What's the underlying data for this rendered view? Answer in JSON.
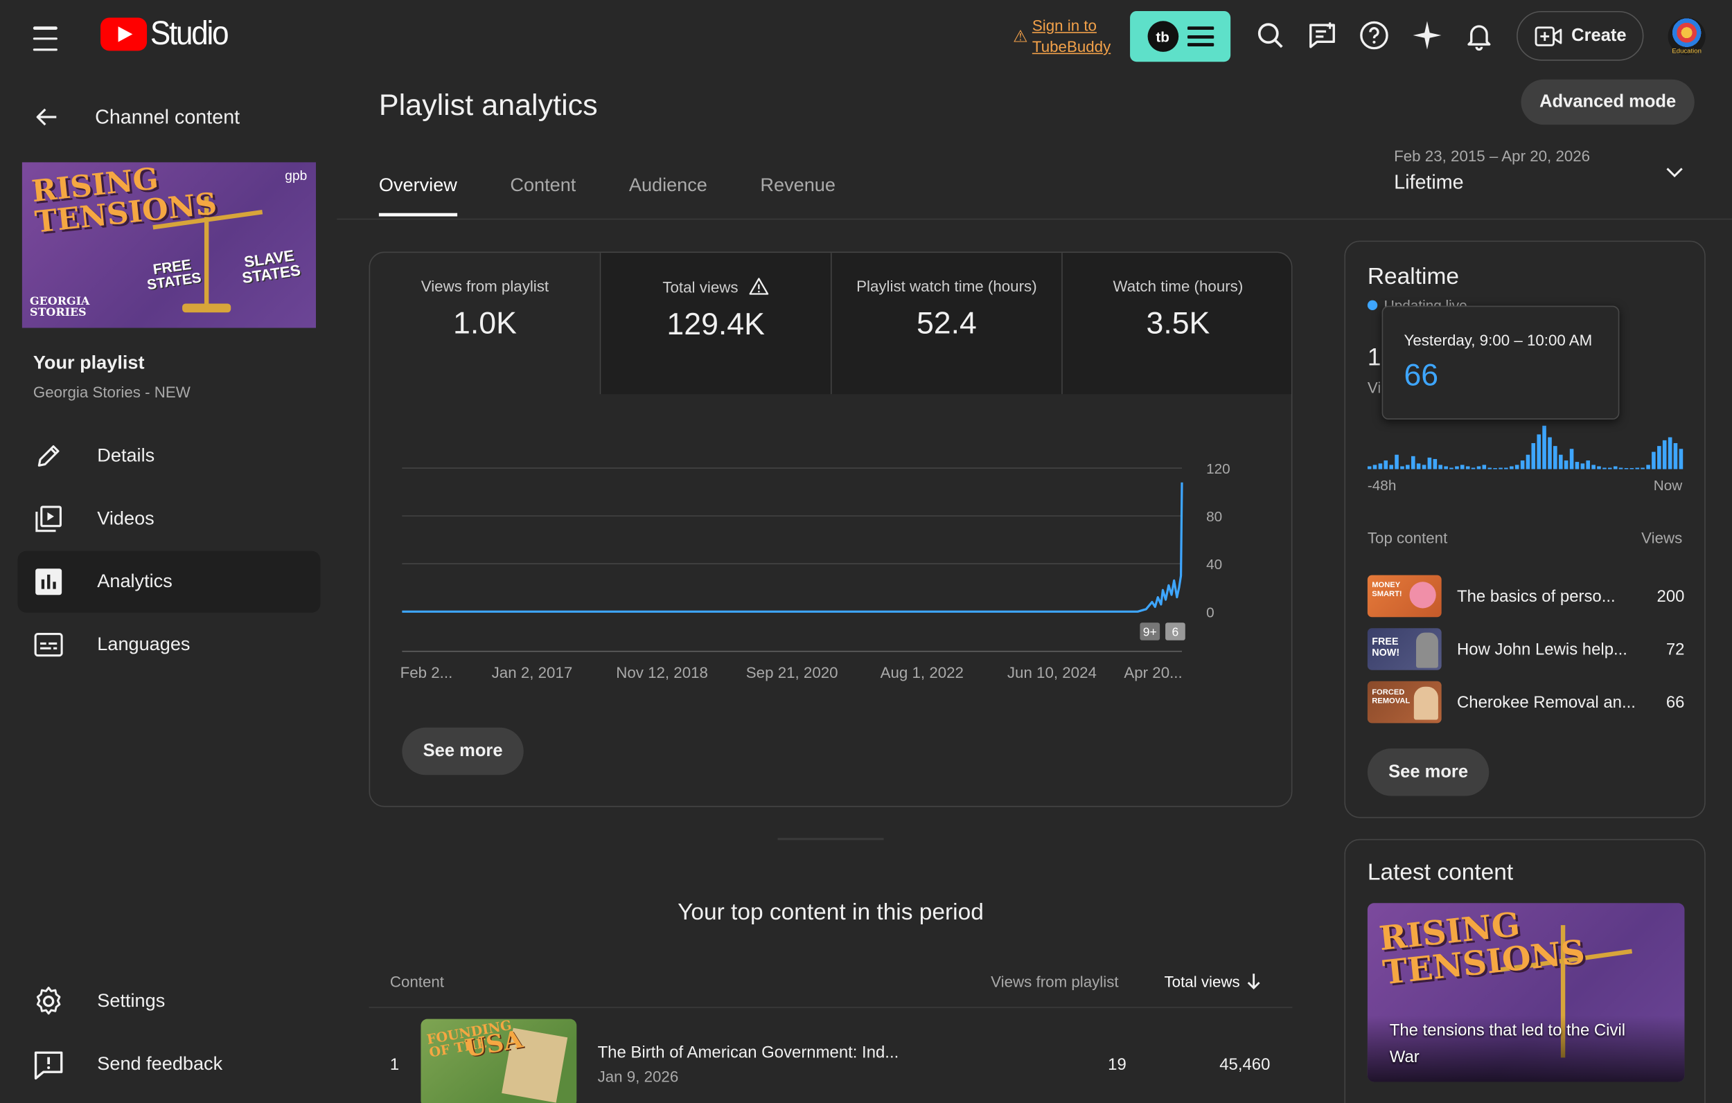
{
  "header": {
    "logo_text": "Studio",
    "tubebuddy_signin_line1": "Sign in to",
    "tubebuddy_signin_line2": "TubeBuddy",
    "tubebuddy_logo": "tb",
    "create_label": "Create",
    "avatar_label": "Education",
    "icons": [
      "menu-icon",
      "search-icon",
      "comments-icon",
      "help-icon",
      "sparkle-icon",
      "bell-icon",
      "video-plus-icon"
    ]
  },
  "sidebar": {
    "back_label": "Channel content",
    "thumbnail": {
      "title_line1": "RISING",
      "title_line2": "TENSIONS",
      "free": "FREE",
      "free2": "STATES",
      "slave": "SLAVE",
      "slave2": "STATES",
      "brand1": "GEORGIA",
      "brand2": "STORIES",
      "logo": "gpb"
    },
    "playlist_title": "Your playlist",
    "playlist_name": "Georgia Stories - NEW",
    "nav": [
      {
        "label": "Details",
        "icon": "pencil-icon"
      },
      {
        "label": "Videos",
        "icon": "video-library-icon"
      },
      {
        "label": "Analytics",
        "icon": "analytics-icon",
        "active": true
      },
      {
        "label": "Languages",
        "icon": "subtitles-icon"
      }
    ],
    "bottom": [
      {
        "label": "Settings",
        "icon": "gear-icon"
      },
      {
        "label": "Send feedback",
        "icon": "feedback-icon"
      }
    ]
  },
  "main": {
    "title": "Playlist analytics",
    "advanced_mode": "Advanced mode",
    "tabs": [
      "Overview",
      "Content",
      "Audience",
      "Revenue"
    ],
    "period_range": "Feb 23, 2015 – Apr 20, 2026",
    "period_value": "Lifetime",
    "metrics": [
      {
        "label": "Views from playlist",
        "value": "1.0K"
      },
      {
        "label": "Total views",
        "value": "129.4K",
        "warning": true
      },
      {
        "label": "Playlist watch time (hours)",
        "value": "52.4"
      },
      {
        "label": "Watch time (hours)",
        "value": "3.5K"
      }
    ],
    "see_more": "See more",
    "top_content_heading": "Your top content in this period",
    "table": {
      "col_content": "Content",
      "col_views_playlist": "Views from playlist",
      "col_total_views": "Total views",
      "rows": [
        {
          "rank": "1",
          "title": "The Birth of American Government: Ind...",
          "date": "Jan 9, 2026",
          "views_from_playlist": "19",
          "total_views": "45,460",
          "thumb_text1": "FOUNDING",
          "thumb_text2": "OF THE",
          "thumb_text3": "USA"
        }
      ]
    }
  },
  "chart_data": {
    "type": "line",
    "x_tick_labels": [
      "Feb 2...",
      "Jan 2, 2017",
      "Nov 12, 2018",
      "Sep 21, 2020",
      "Aug 1, 2022",
      "Jun 10, 2024",
      "Apr 20..."
    ],
    "y_ticks": [
      "120",
      "80",
      "40",
      "0"
    ],
    "ylim": [
      0,
      120
    ],
    "series": [
      {
        "color": "#3ea6ff",
        "x": [
          "2015-02-23",
          "2016-01-01",
          "2018-01-01",
          "2020-01-01",
          "2022-01-01",
          "2024-01-01",
          "2025-09-01",
          "2025-10-15",
          "2025-11-15",
          "2025-12-01",
          "2025-12-15",
          "2026-01-01",
          "2026-01-10",
          "2026-01-25",
          "2026-02-10",
          "2026-02-25",
          "2026-03-10",
          "2026-03-25",
          "2026-04-05",
          "2026-04-15",
          "2026-04-20"
        ],
        "values": [
          0,
          0,
          0,
          0,
          0,
          0,
          0,
          2,
          8,
          4,
          12,
          6,
          18,
          10,
          22,
          14,
          26,
          12,
          20,
          30,
          108
        ]
      }
    ],
    "markers": [
      "9+",
      "6"
    ]
  },
  "realtime": {
    "title": "Realtime",
    "status": "Updating live",
    "number_partial": "1",
    "label_partial": "Vi",
    "tooltip_when": "Yesterday, 9:00 – 10:00 AM",
    "tooltip_value": "66",
    "axis_left": "-48h",
    "axis_right": "Now",
    "bars": [
      2,
      3,
      4,
      6,
      3,
      10,
      2,
      3,
      9,
      4,
      3,
      8,
      7,
      3,
      2,
      1,
      2,
      3,
      2,
      1,
      2,
      3,
      1,
      0,
      1,
      1,
      2,
      3,
      6,
      10,
      18,
      24,
      30,
      22,
      16,
      10,
      6,
      14,
      5,
      4,
      6,
      3,
      2,
      1,
      1,
      2,
      1,
      0,
      0,
      1,
      1,
      3,
      12,
      16,
      20,
      22,
      18,
      14
    ],
    "top_content_label": "Top content",
    "views_label": "Views",
    "items": [
      {
        "title": "The basics of perso...",
        "views": "200",
        "thumb": "MONEY SMART!"
      },
      {
        "title": "How John Lewis help...",
        "views": "72",
        "thumb": "FREE NOW!"
      },
      {
        "title": "Cherokee Removal an...",
        "views": "66",
        "thumb": "FORCED REMOVAL"
      }
    ],
    "see_more": "See more"
  },
  "latest": {
    "title": "Latest content",
    "thumb_line1": "RISING",
    "thumb_line2": "TENSIONS",
    "caption": "The tensions that led to the Civil War"
  }
}
